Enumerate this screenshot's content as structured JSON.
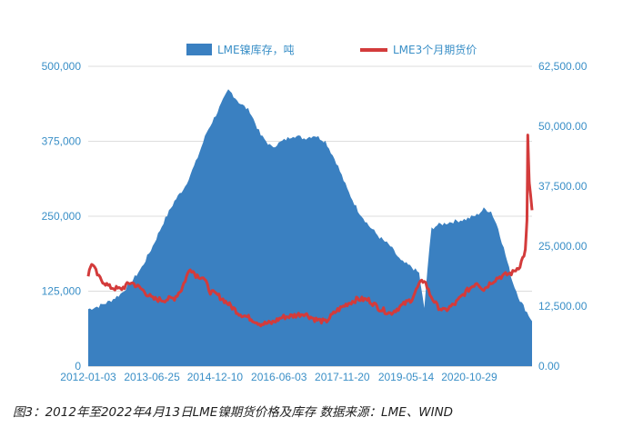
{
  "caption": "图3：2012年至2022年4月13日LME镍期货价格及库存  数据来源：LME、WIND",
  "chart_data": {
    "type": "area+line",
    "x_tick_labels": [
      "2012-01-03",
      "2013-06-25",
      "2014-12-10",
      "2016-06-03",
      "2017-11-20",
      "2019-05-14",
      "2020-10-29"
    ],
    "left_axis": {
      "ylim": [
        0,
        500000
      ],
      "tick_labels": [
        "0",
        "125,000",
        "250,000",
        "375,000",
        "500,000"
      ],
      "color": "#3a8fc7"
    },
    "right_axis": {
      "ylim": [
        0,
        62500
      ],
      "tick_labels": [
        "0.00",
        "12,500.00",
        "25,000.00",
        "37,500.00",
        "50,000.00",
        "62,500.00"
      ],
      "color": "#3a8fc7"
    },
    "grid": true,
    "legend_position": "top",
    "series": [
      {
        "name": "LME镍库存，吨",
        "type": "area",
        "axis": "left",
        "color": "#3a80c1",
        "x": [
          "2012-01-03",
          "2012-04-01",
          "2012-07-01",
          "2012-10-01",
          "2013-01-01",
          "2013-04-01",
          "2013-07-01",
          "2013-10-01",
          "2014-01-01",
          "2014-04-01",
          "2014-07-01",
          "2014-10-01",
          "2015-01-01",
          "2015-04-01",
          "2015-05-01",
          "2015-07-01",
          "2015-10-01",
          "2016-01-01",
          "2016-04-01",
          "2016-07-01",
          "2016-10-01",
          "2017-01-01",
          "2017-04-01",
          "2017-07-01",
          "2017-10-01",
          "2018-01-01",
          "2018-04-01",
          "2018-07-01",
          "2018-10-01",
          "2019-01-01",
          "2019-04-01",
          "2019-07-01",
          "2019-09-01",
          "2019-10-15",
          "2019-11-10",
          "2019-12-15",
          "2020-02-01",
          "2020-04-01",
          "2020-07-01",
          "2020-10-01",
          "2021-01-01",
          "2021-03-01",
          "2021-05-01",
          "2021-07-01",
          "2021-09-01",
          "2021-11-01",
          "2022-01-01",
          "2022-03-01",
          "2022-04-13"
        ],
        "values": [
          95000,
          100000,
          108000,
          120000,
          140000,
          165000,
          200000,
          240000,
          275000,
          300000,
          340000,
          390000,
          425000,
          460000,
          455000,
          440000,
          425000,
          385000,
          365000,
          375000,
          385000,
          380000,
          385000,
          375000,
          340000,
          295000,
          260000,
          235000,
          215000,
          200000,
          175000,
          165000,
          155000,
          95000,
          160000,
          230000,
          235000,
          238000,
          242000,
          245000,
          252000,
          262000,
          258000,
          230000,
          185000,
          140000,
          110000,
          90000,
          75000
        ]
      },
      {
        "name": "LME3个月期货价",
        "type": "line",
        "axis": "right",
        "color": "#d33b3b",
        "x": [
          "2012-01-03",
          "2012-02-01",
          "2012-04-01",
          "2012-07-01",
          "2012-10-01",
          "2013-01-01",
          "2013-04-01",
          "2013-07-01",
          "2013-10-01",
          "2014-01-01",
          "2014-03-01",
          "2014-05-15",
          "2014-07-01",
          "2014-09-01",
          "2014-11-01",
          "2015-01-01",
          "2015-04-01",
          "2015-07-01",
          "2015-10-01",
          "2016-01-01",
          "2016-04-01",
          "2016-07-01",
          "2016-10-01",
          "2017-01-01",
          "2017-04-01",
          "2017-07-01",
          "2017-10-01",
          "2018-01-01",
          "2018-04-01",
          "2018-07-01",
          "2018-10-01",
          "2019-01-01",
          "2019-04-01",
          "2019-07-01",
          "2019-09-01",
          "2019-10-15",
          "2019-12-01",
          "2020-02-01",
          "2020-04-01",
          "2020-07-01",
          "2020-10-01",
          "2021-01-01",
          "2021-03-01",
          "2021-05-01",
          "2021-07-01",
          "2021-09-01",
          "2021-11-01",
          "2022-01-01",
          "2022-02-15",
          "2022-03-01",
          "2022-03-08",
          "2022-03-20",
          "2022-04-13"
        ],
        "values": [
          19000,
          21500,
          18500,
          16500,
          16000,
          17500,
          16000,
          14000,
          13800,
          14200,
          16000,
          20500,
          19000,
          18500,
          15500,
          14800,
          13000,
          11000,
          10000,
          8800,
          9000,
          10200,
          10500,
          11000,
          9800,
          9200,
          11500,
          13000,
          14000,
          13800,
          12000,
          11000,
          12500,
          14000,
          17000,
          18000,
          15000,
          12500,
          11500,
          13000,
          15500,
          17500,
          16000,
          17500,
          18500,
          19000,
          19500,
          21000,
          24000,
          30000,
          48000,
          38000,
          32500
        ]
      }
    ]
  }
}
